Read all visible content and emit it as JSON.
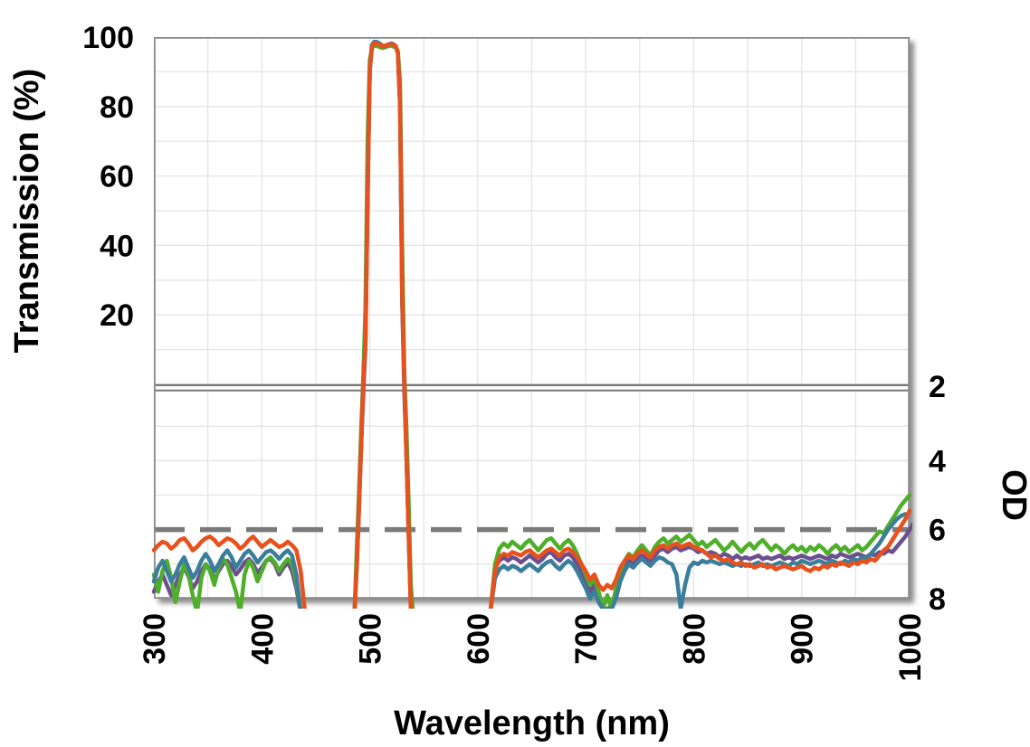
{
  "chart_data": {
    "type": "line",
    "title": "",
    "xlabel": "Wavelength (nm)",
    "ylabel_top": "Transmission (%)",
    "ylabel_bottom": "OD",
    "x_range_nm": [
      300,
      1000
    ],
    "x_ticks": [
      300,
      400,
      500,
      600,
      700,
      800,
      900,
      1000
    ],
    "top_panel": {
      "scale": "transmission_percent",
      "range": [
        0,
        100
      ],
      "ticks": [
        20,
        40,
        60,
        80,
        100
      ],
      "gridlines_pct": [
        10,
        20,
        30,
        40,
        50,
        60,
        70,
        80,
        90
      ]
    },
    "bottom_panel": {
      "scale": "optical_density",
      "range": [
        2,
        8
      ],
      "inverted": true,
      "ticks": [
        2,
        4,
        6,
        8
      ],
      "gridlines_od": [
        3,
        4,
        5,
        7
      ],
      "reference_line_od": 6
    },
    "x_gridlines_nm": [
      350,
      400,
      450,
      500,
      550,
      600,
      650,
      700,
      750,
      800,
      850,
      900,
      950
    ],
    "grid_on": true,
    "legend": "none",
    "colors": {
      "orange": "#e8501c",
      "green": "#4fae2a",
      "teal": "#3a7e9b",
      "purple": "#6b4f8e",
      "dashed_reference": "#7a7a7a",
      "axis_border": "#8a8a8a",
      "gridline": "#e4e4e4",
      "break_line": "#777777",
      "text": "#000000",
      "background": "#ffffff"
    },
    "bandpass_summary": {
      "passband_nm": [
        493,
        535
      ],
      "peak_transmission_pct": 98,
      "blocking_od_typical": 6.5
    },
    "series": [
      {
        "name": "purple-trace",
        "color_key": "purple",
        "segments": [
          {
            "start_nm": 300,
            "step_nm": 4,
            "od": [
              7.8,
              7.5,
              7.3,
              7.6,
              7.9,
              7.6,
              7.3,
              7.1,
              7.35,
              7.7,
              7.5,
              7.2,
              7.0,
              7.15,
              7.45,
              7.2,
              7.0,
              6.9,
              7.05,
              7.3,
              7.15,
              6.95,
              6.85,
              7.0,
              7.25,
              7.1,
              6.9,
              6.85,
              7.0,
              7.3,
              7.1,
              6.95,
              7.2,
              7.7,
              8.4,
              8.4
            ]
          },
          {
            "start_nm": 486,
            "step_nm": 2,
            "od": [
              8.3,
              7.05,
              5.4,
              3.6,
              2.05,
              0.95,
              0.27,
              0.045,
              0.012,
              0.009,
              0.008,
              0.009,
              0.01,
              0.011,
              0.011,
              0.01,
              0.009,
              0.009,
              0.01,
              0.012,
              0.021,
              0.095,
              0.62,
              2.05,
              3.95,
              6.15,
              8.3
            ]
          },
          {
            "start_nm": 612,
            "step_nm": 4,
            "od": [
              8.3,
              7.1,
              6.9,
              6.8,
              6.9,
              6.8,
              6.85,
              6.95,
              6.85,
              6.75,
              6.85,
              6.95,
              6.85,
              6.7,
              6.65,
              6.8,
              6.9,
              6.75,
              6.7,
              6.8,
              7.0,
              7.25,
              7.5,
              7.8,
              7.6,
              7.9,
              8.3,
              8.3,
              8.2,
              7.9,
              7.4,
              7.1,
              6.9,
              7.0,
              6.85,
              6.75,
              6.85,
              6.95,
              6.75,
              6.6,
              6.55,
              6.65,
              6.55,
              6.5,
              6.6,
              6.55,
              6.5,
              6.55,
              6.65,
              6.6,
              6.7,
              6.65,
              6.7,
              6.8,
              6.7,
              6.75,
              6.85,
              6.75,
              6.85,
              6.8,
              6.85,
              6.8,
              6.75,
              6.85,
              6.8,
              6.85,
              6.8,
              6.75,
              6.85,
              6.8,
              6.85,
              6.8,
              6.75,
              6.8,
              6.85,
              6.8,
              6.75,
              6.8,
              6.85,
              6.75,
              6.8,
              6.7,
              6.75,
              6.8,
              6.75,
              6.7,
              6.75,
              6.8,
              6.7,
              6.75,
              6.65,
              6.7,
              6.6,
              6.65,
              6.5,
              6.35,
              6.2,
              6.0,
              5.8,
              5.6,
              5.45,
              5.35,
              5.3
            ]
          }
        ]
      },
      {
        "name": "green-trace",
        "color_key": "green",
        "segments": [
          {
            "start_nm": 300,
            "step_nm": 4,
            "od": [
              7.3,
              7.8,
              7.2,
              6.9,
              7.4,
              8.1,
              7.5,
              7.0,
              7.3,
              7.9,
              8.4,
              7.4,
              7.0,
              7.2,
              7.6,
              7.1,
              6.85,
              7.0,
              7.4,
              7.8,
              8.4,
              7.3,
              6.9,
              7.1,
              7.5,
              7.2,
              6.9,
              6.8,
              6.95,
              7.2,
              7.0,
              6.85,
              7.0,
              7.5,
              8.4,
              8.4
            ]
          },
          {
            "start_nm": 486,
            "step_nm": 2,
            "od": [
              8.3,
              6.5,
              4.9,
              3.1,
              1.6,
              0.65,
              0.15,
              0.03,
              0.014,
              0.011,
              0.011,
              0.012,
              0.013,
              0.014,
              0.013,
              0.012,
              0.011,
              0.011,
              0.012,
              0.013,
              0.018,
              0.06,
              0.4,
              1.5,
              3.1,
              5.2,
              7.6,
              8.4
            ]
          },
          {
            "start_nm": 612,
            "step_nm": 4,
            "od": [
              8.3,
              7.0,
              6.55,
              6.4,
              6.5,
              6.35,
              6.45,
              6.55,
              6.4,
              6.3,
              6.45,
              6.6,
              6.45,
              6.3,
              6.25,
              6.4,
              6.55,
              6.4,
              6.3,
              6.45,
              6.7,
              7.0,
              7.3,
              7.6,
              7.4,
              7.8,
              8.3,
              7.9,
              8.3,
              7.7,
              7.2,
              6.9,
              6.7,
              6.8,
              6.6,
              6.45,
              6.6,
              6.75,
              6.5,
              6.35,
              6.25,
              6.4,
              6.3,
              6.2,
              6.35,
              6.25,
              6.15,
              6.3,
              6.45,
              6.35,
              6.5,
              6.4,
              6.3,
              6.45,
              6.6,
              6.5,
              6.35,
              6.5,
              6.65,
              6.5,
              6.4,
              6.55,
              6.4,
              6.3,
              6.45,
              6.6,
              6.45,
              6.55,
              6.7,
              6.55,
              6.45,
              6.6,
              6.5,
              6.65,
              6.5,
              6.6,
              6.45,
              6.55,
              6.7,
              6.55,
              6.45,
              6.6,
              6.5,
              6.65,
              6.55,
              6.45,
              6.6,
              6.5,
              6.35,
              6.2,
              6.05,
              6.1,
              5.9,
              5.7,
              5.5,
              5.3,
              5.15,
              5.0
            ]
          }
        ]
      },
      {
        "name": "teal-trace",
        "color_key": "teal",
        "segments": [
          {
            "start_nm": 300,
            "step_nm": 4,
            "od": [
              7.5,
              7.1,
              6.9,
              7.2,
              7.5,
              7.3,
              7.0,
              6.8,
              7.1,
              7.4,
              7.2,
              6.9,
              6.7,
              6.9,
              7.2,
              7.0,
              6.75,
              6.6,
              6.8,
              7.1,
              6.9,
              6.7,
              6.6,
              6.75,
              6.95,
              6.8,
              6.65,
              6.6,
              6.7,
              6.85,
              6.7,
              6.6,
              6.75,
              7.3,
              8.4,
              8.4
            ]
          },
          {
            "start_nm": 486,
            "step_nm": 2,
            "od": [
              8.3,
              7.0,
              5.3,
              3.5,
              2.0,
              0.9,
              0.25,
              0.04,
              0.01,
              0.006,
              0.006,
              0.007,
              0.009,
              0.011,
              0.012,
              0.01,
              0.009,
              0.008,
              0.009,
              0.012,
              0.02,
              0.09,
              0.6,
              2.0,
              3.9,
              6.1,
              8.3
            ]
          },
          {
            "start_nm": 612,
            "step_nm": 4,
            "od": [
              8.3,
              7.4,
              7.15,
              7.05,
              7.15,
              7.05,
              7.1,
              7.2,
              7.1,
              7.0,
              7.1,
              7.2,
              7.05,
              6.95,
              6.9,
              7.05,
              7.15,
              7.0,
              6.9,
              7.0,
              7.2,
              7.45,
              7.7,
              8.0,
              7.8,
              8.1,
              8.3,
              8.3,
              8.3,
              8.0,
              7.5,
              7.2,
              7.0,
              7.1,
              6.95,
              6.85,
              6.95,
              7.05,
              6.9,
              6.8,
              6.85,
              6.95,
              7.0,
              7.3,
              8.3,
              7.6,
              7.1,
              6.95,
              7.0,
              6.9,
              6.95,
              6.9,
              6.95,
              7.0,
              6.95,
              7.0,
              7.05,
              7.0,
              7.05,
              7.0,
              7.05,
              7.0,
              6.95,
              7.05,
              7.0,
              7.05,
              7.0,
              6.95,
              7.0,
              7.05,
              6.95,
              7.0,
              6.9,
              6.95,
              7.0,
              6.95,
              6.9,
              6.95,
              7.0,
              6.9,
              6.95,
              7.0,
              6.9,
              6.95,
              6.85,
              6.9,
              6.8,
              6.85,
              6.7,
              6.55,
              6.4,
              6.2,
              6.0,
              5.85,
              5.7,
              5.6,
              5.55
            ]
          }
        ]
      },
      {
        "name": "orange-trace",
        "color_key": "orange",
        "segments": [
          {
            "start_nm": 300,
            "step_nm": 4,
            "od": [
              6.6,
              6.45,
              6.35,
              6.4,
              6.55,
              6.45,
              6.3,
              6.25,
              6.4,
              6.6,
              6.5,
              6.35,
              6.25,
              6.2,
              6.3,
              6.45,
              6.35,
              6.25,
              6.3,
              6.4,
              6.55,
              6.45,
              6.3,
              6.2,
              6.35,
              6.5,
              6.4,
              6.3,
              6.4,
              6.5,
              6.45,
              6.35,
              6.45,
              6.6,
              7.2,
              8.4
            ]
          },
          {
            "start_nm": 486,
            "step_nm": 2,
            "od": [
              8.3,
              7.0,
              5.35,
              3.55,
              2.0,
              0.92,
              0.26,
              0.042,
              0.012,
              0.008,
              0.008,
              0.009,
              0.01,
              0.012,
              0.011,
              0.01,
              0.009,
              0.009,
              0.01,
              0.011,
              0.02,
              0.09,
              0.6,
              2.0,
              3.9,
              6.1,
              8.3
            ]
          },
          {
            "start_nm": 612,
            "step_nm": 4,
            "od": [
              8.3,
              7.2,
              6.8,
              6.7,
              6.75,
              6.65,
              6.7,
              6.75,
              6.65,
              6.6,
              6.7,
              6.8,
              6.7,
              6.6,
              6.55,
              6.65,
              6.75,
              6.6,
              6.55,
              6.65,
              6.8,
              7.0,
              7.2,
              7.45,
              7.3,
              7.6,
              7.75,
              7.6,
              7.7,
              7.45,
              7.1,
              6.9,
              6.75,
              6.85,
              6.7,
              6.6,
              6.7,
              6.8,
              6.6,
              6.5,
              6.45,
              6.55,
              6.45,
              6.4,
              6.5,
              6.45,
              6.4,
              6.5,
              6.55,
              6.6,
              6.7,
              6.8,
              6.75,
              6.85,
              6.9,
              6.85,
              6.95,
              7.0,
              6.95,
              7.05,
              7.0,
              7.1,
              7.05,
              7.0,
              7.1,
              7.05,
              7.15,
              7.1,
              7.05,
              7.1,
              7.15,
              7.1,
              7.05,
              7.15,
              7.2,
              7.1,
              7.15,
              7.05,
              7.1,
              7.0,
              7.05,
              6.95,
              7.0,
              7.05,
              6.95,
              7.0,
              6.9,
              6.95,
              6.85,
              6.9,
              6.75,
              6.6,
              6.5,
              6.3,
              6.1,
              5.9,
              5.7,
              5.45
            ]
          }
        ]
      }
    ]
  }
}
